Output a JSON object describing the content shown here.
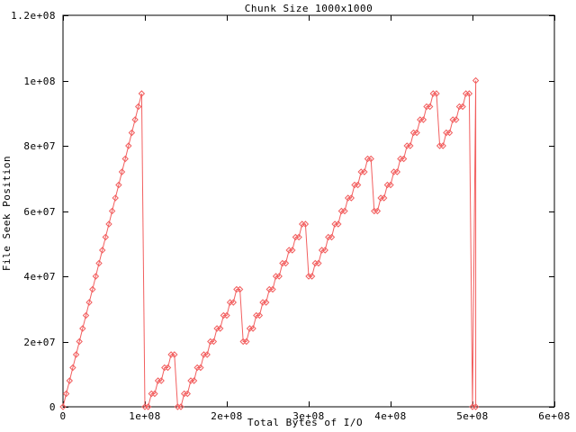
{
  "chart_data": {
    "type": "line",
    "title": "Chunk Size 1000x1000",
    "xlabel": "Total Bytes of I/O",
    "ylabel": "File Seek Position",
    "xlim": [
      0,
      600000000
    ],
    "ylim": [
      0,
      120000000
    ],
    "grid": false,
    "legend": "none",
    "background_color": "#ffffff",
    "axis_color": "#000000",
    "xticks": [
      {
        "value": 0,
        "label": "0"
      },
      {
        "value": 100000000,
        "label": "1e+08"
      },
      {
        "value": 200000000,
        "label": "2e+08"
      },
      {
        "value": 300000000,
        "label": "3e+08"
      },
      {
        "value": 400000000,
        "label": "4e+08"
      },
      {
        "value": 500000000,
        "label": "5e+08"
      },
      {
        "value": 600000000,
        "label": "6e+08"
      }
    ],
    "yticks": [
      {
        "value": 0,
        "label": "0"
      },
      {
        "value": 20000000,
        "label": "2e+07"
      },
      {
        "value": 40000000,
        "label": "4e+07"
      },
      {
        "value": 60000000,
        "label": "6e+07"
      },
      {
        "value": 80000000,
        "label": "8e+07"
      },
      {
        "value": 100000000,
        "label": "1e+08"
      },
      {
        "value": 120000000,
        "label": "1.2e+08"
      }
    ],
    "series": [
      {
        "name": "File Seek Position",
        "color": "#f25f5f",
        "marker": "open-diamond",
        "point_unit_bytes": 1000000,
        "points": [
          [
            0,
            0
          ],
          [
            4,
            4
          ],
          [
            8,
            8
          ],
          [
            12,
            12
          ],
          [
            16,
            16
          ],
          [
            20,
            20
          ],
          [
            24,
            24
          ],
          [
            28,
            28
          ],
          [
            32,
            32
          ],
          [
            36,
            36
          ],
          [
            40,
            40
          ],
          [
            44,
            44
          ],
          [
            48,
            48
          ],
          [
            52,
            52
          ],
          [
            56,
            56
          ],
          [
            60,
            60
          ],
          [
            64,
            64
          ],
          [
            68,
            68
          ],
          [
            72,
            72
          ],
          [
            76,
            76
          ],
          [
            80,
            80
          ],
          [
            84,
            84
          ],
          [
            88,
            88
          ],
          [
            92,
            92
          ],
          [
            96,
            96
          ],
          [
            100,
            0
          ],
          [
            104,
            0
          ],
          [
            108,
            4
          ],
          [
            112,
            4
          ],
          [
            116,
            8
          ],
          [
            120,
            8
          ],
          [
            124,
            12
          ],
          [
            128,
            12
          ],
          [
            132,
            16
          ],
          [
            136,
            16
          ],
          [
            140,
            0
          ],
          [
            144,
            0
          ],
          [
            148,
            4
          ],
          [
            152,
            4
          ],
          [
            156,
            8
          ],
          [
            160,
            8
          ],
          [
            164,
            12
          ],
          [
            168,
            12
          ],
          [
            172,
            16
          ],
          [
            176,
            16
          ],
          [
            180,
            20
          ],
          [
            184,
            20
          ],
          [
            188,
            24
          ],
          [
            192,
            24
          ],
          [
            196,
            28
          ],
          [
            200,
            28
          ],
          [
            204,
            32
          ],
          [
            208,
            32
          ],
          [
            212,
            36
          ],
          [
            216,
            36
          ],
          [
            220,
            20
          ],
          [
            224,
            20
          ],
          [
            228,
            24
          ],
          [
            232,
            24
          ],
          [
            236,
            28
          ],
          [
            240,
            28
          ],
          [
            244,
            32
          ],
          [
            248,
            32
          ],
          [
            252,
            36
          ],
          [
            256,
            36
          ],
          [
            260,
            40
          ],
          [
            264,
            40
          ],
          [
            268,
            44
          ],
          [
            272,
            44
          ],
          [
            276,
            48
          ],
          [
            280,
            48
          ],
          [
            284,
            52
          ],
          [
            288,
            52
          ],
          [
            292,
            56
          ],
          [
            296,
            56
          ],
          [
            300,
            40
          ],
          [
            304,
            40
          ],
          [
            308,
            44
          ],
          [
            312,
            44
          ],
          [
            316,
            48
          ],
          [
            320,
            48
          ],
          [
            324,
            52
          ],
          [
            328,
            52
          ],
          [
            332,
            56
          ],
          [
            336,
            56
          ],
          [
            340,
            60
          ],
          [
            344,
            60
          ],
          [
            348,
            64
          ],
          [
            352,
            64
          ],
          [
            356,
            68
          ],
          [
            360,
            68
          ],
          [
            364,
            72
          ],
          [
            368,
            72
          ],
          [
            372,
            76
          ],
          [
            376,
            76
          ],
          [
            380,
            60
          ],
          [
            384,
            60
          ],
          [
            388,
            64
          ],
          [
            392,
            64
          ],
          [
            396,
            68
          ],
          [
            400,
            68
          ],
          [
            404,
            72
          ],
          [
            408,
            72
          ],
          [
            412,
            76
          ],
          [
            416,
            76
          ],
          [
            420,
            80
          ],
          [
            424,
            80
          ],
          [
            428,
            84
          ],
          [
            432,
            84
          ],
          [
            436,
            88
          ],
          [
            440,
            88
          ],
          [
            444,
            92
          ],
          [
            448,
            92
          ],
          [
            452,
            96
          ],
          [
            456,
            96
          ],
          [
            460,
            80
          ],
          [
            464,
            80
          ],
          [
            468,
            84
          ],
          [
            472,
            84
          ],
          [
            476,
            88
          ],
          [
            480,
            88
          ],
          [
            484,
            92
          ],
          [
            488,
            92
          ],
          [
            492,
            96
          ],
          [
            496,
            96
          ],
          [
            500,
            0
          ],
          [
            504,
            100
          ],
          [
            504,
            0
          ]
        ]
      }
    ]
  }
}
